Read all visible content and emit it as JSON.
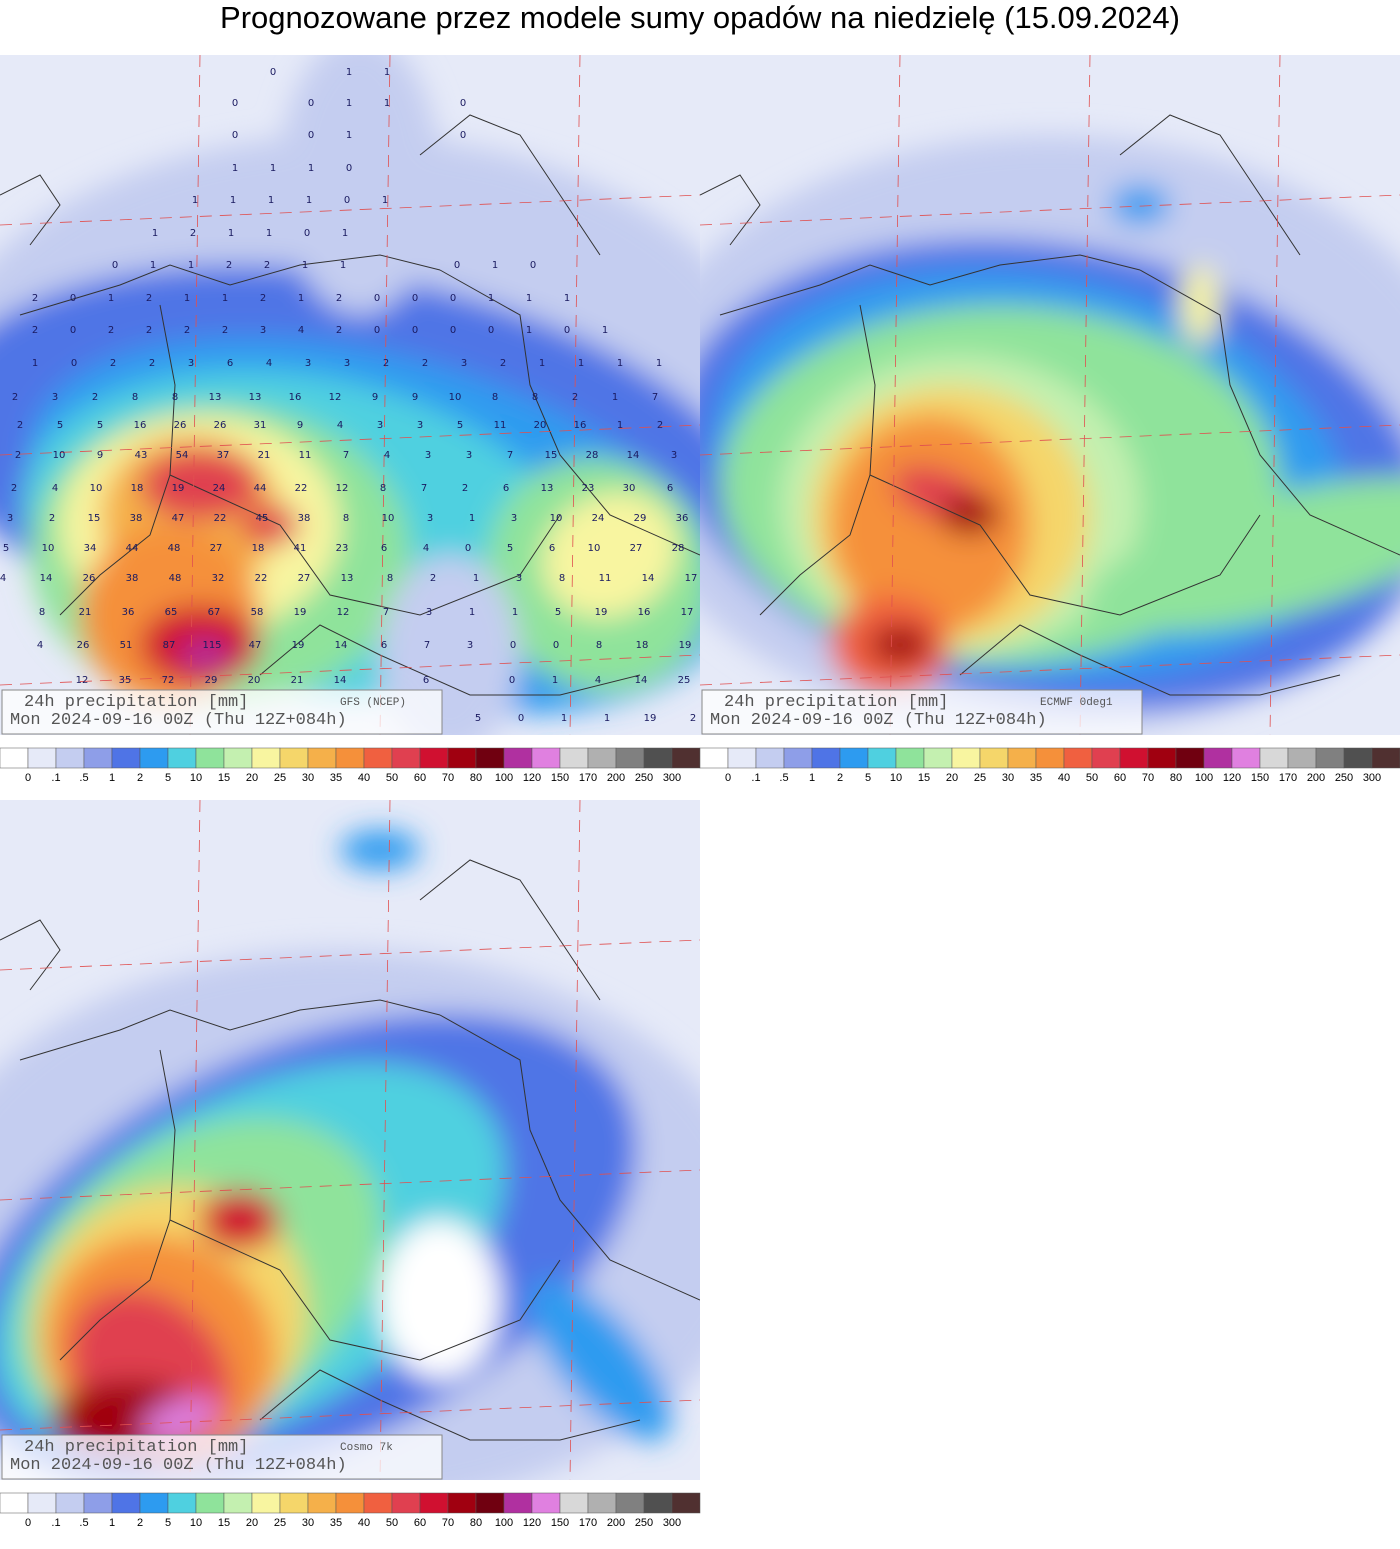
{
  "title": "Prognozowane przez modele sumy opadów na niedzielę (15.09.2024)",
  "colorbar": {
    "labels": [
      "0",
      ".1",
      ".5",
      "1",
      "2",
      "5",
      "10",
      "15",
      "20",
      "25",
      "30",
      "35",
      "40",
      "50",
      "60",
      "70",
      "80",
      "100",
      "120",
      "150",
      "170",
      "200",
      "250",
      "300"
    ],
    "colors": [
      "#ffffff",
      "#e6eaf8",
      "#c4cdf0",
      "#8e9ee8",
      "#4f74e6",
      "#2d9bf0",
      "#4fd0e0",
      "#8fe39b",
      "#c4f0b0",
      "#f8f5a0",
      "#f5d66a",
      "#f5b04a",
      "#f5903a",
      "#f06040",
      "#e04050",
      "#d01030",
      "#a00010",
      "#700010",
      "#b030a0",
      "#e080e0",
      "#d8d8d8",
      "#b0b0b0",
      "#808080",
      "#505050",
      "#503030"
    ]
  },
  "panels": [
    {
      "line1": "24h precipitation   [mm]",
      "model": "GFS (NCEP)",
      "line2": "Mon 2024-09-16 00Z (Thu 12Z+084h)",
      "grid_values": [
        [
          0,
          null,
          1,
          1
        ],
        [
          0,
          null,
          0,
          1,
          1,
          null,
          0
        ],
        [
          0,
          null,
          0,
          1,
          null,
          null,
          0
        ],
        [
          1,
          1,
          1,
          0
        ],
        [
          1,
          1,
          1,
          1,
          0,
          1
        ],
        [
          1,
          2,
          1,
          1,
          0,
          1
        ],
        [
          0,
          1,
          1,
          2,
          2,
          1,
          1,
          null,
          null,
          0,
          1,
          0
        ],
        [
          2,
          0,
          1,
          2,
          1,
          1,
          2,
          1,
          2,
          0,
          0,
          0,
          1,
          1,
          1
        ],
        [
          2,
          0,
          2,
          2,
          2,
          2,
          3,
          4,
          2,
          0,
          0,
          0,
          0,
          1,
          0,
          1
        ],
        [
          1,
          0,
          2,
          2,
          3,
          6,
          4,
          3,
          3,
          2,
          2,
          3,
          2,
          1,
          1,
          1,
          1
        ],
        [
          2,
          3,
          2,
          8,
          8,
          13,
          13,
          16,
          12,
          9,
          9,
          10,
          8,
          8,
          2,
          1,
          7
        ],
        [
          2,
          5,
          5,
          16,
          26,
          26,
          31,
          9,
          4,
          3,
          3,
          5,
          11,
          20,
          16,
          1,
          2
        ],
        [
          2,
          10,
          9,
          43,
          54,
          37,
          21,
          11,
          7,
          4,
          3,
          3,
          7,
          15,
          28,
          14,
          3
        ],
        [
          2,
          4,
          10,
          18,
          19,
          24,
          44,
          22,
          12,
          8,
          7,
          2,
          6,
          13,
          23,
          30,
          6
        ],
        [
          3,
          2,
          15,
          38,
          47,
          22,
          45,
          38,
          8,
          10,
          3,
          1,
          3,
          10,
          24,
          29,
          36
        ],
        [
          5,
          10,
          34,
          44,
          48,
          27,
          18,
          41,
          23,
          6,
          4,
          0,
          5,
          6,
          10,
          27,
          28
        ],
        [
          4,
          14,
          26,
          38,
          48,
          32,
          22,
          27,
          13,
          8,
          2,
          1,
          3,
          8,
          11,
          14,
          17
        ],
        [
          8,
          21,
          36,
          65,
          67,
          58,
          19,
          12,
          7,
          3,
          1,
          1,
          5,
          19,
          16,
          17
        ],
        [
          4,
          26,
          51,
          87,
          115,
          47,
          19,
          14,
          6,
          7,
          3,
          0,
          0,
          8,
          18,
          19
        ],
        [
          12,
          35,
          72,
          29,
          20,
          21,
          14,
          null,
          6,
          null,
          0,
          1,
          4,
          14,
          25
        ],
        [
          5,
          0,
          1,
          1,
          19,
          2
        ]
      ]
    },
    {
      "line1": "24h precipitation   [mm]",
      "model": "ECMWF 0deg1",
      "line2": "Mon 2024-09-16 00Z (Thu 12Z+084h)"
    },
    {
      "line1": "24h precipitation   [mm]",
      "model": "Cosmo 7k",
      "line2": "Mon 2024-09-16 00Z (Thu 12Z+084h)"
    }
  ]
}
